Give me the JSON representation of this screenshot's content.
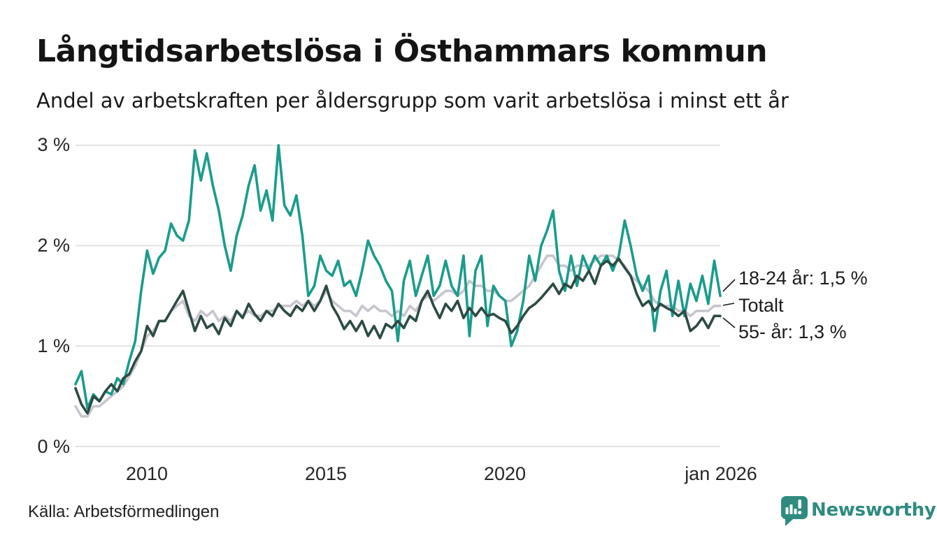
{
  "header": {
    "title": "Långtidsarbetslösa i Östhammars kommun",
    "subtitle": "Andel av arbetskraften per åldersgrupp som varit arbetslösa i minst ett år"
  },
  "footer": {
    "source": "Källa: Arbetsförmedlingen",
    "brand": "Newsworthy"
  },
  "colors": {
    "teal": "#1a9c8b",
    "dark_green": "#2c4b44",
    "gray": "#c8c5ce",
    "grid": "#e3e3e3",
    "connector": "#1a1a1a",
    "brand_teal": "#2f8b80"
  },
  "chart_data": {
    "type": "line",
    "title": "Långtidsarbetslösa i Östhammars kommun",
    "subtitle": "Andel av arbetskraften per åldersgrupp som varit arbetslösa i minst ett år",
    "x_start": 2008.0,
    "x_end": 2026.0,
    "xlim": [
      2008.0,
      2026.08
    ],
    "ylim": [
      0,
      3
    ],
    "grid": "horizontal",
    "legend_position": "right-end-labels",
    "yticks": [
      {
        "value": 3,
        "label": "3 %"
      },
      {
        "value": 2,
        "label": "2 %"
      },
      {
        "value": 1,
        "label": "1 %"
      },
      {
        "value": 0,
        "label": "0 %"
      }
    ],
    "xticks": [
      {
        "value": 2010,
        "label": "2010"
      },
      {
        "value": 2015,
        "label": "2015"
      },
      {
        "value": 2020,
        "label": "2020"
      },
      {
        "value": 2026.0,
        "label": "jan 2026"
      }
    ],
    "draw_order": [
      1,
      0,
      2
    ],
    "series": [
      {
        "name": "18-24 år",
        "end_label": "18-24 år: 1,5 %",
        "color": "#1a9c8b",
        "values": [
          0.62,
          0.75,
          0.38,
          0.52,
          0.45,
          0.55,
          0.52,
          0.68,
          0.62,
          0.85,
          1.05,
          1.55,
          1.95,
          1.72,
          1.88,
          1.95,
          2.22,
          2.1,
          2.05,
          2.25,
          2.95,
          2.65,
          2.92,
          2.6,
          2.35,
          2.0,
          1.75,
          2.1,
          2.3,
          2.6,
          2.8,
          2.35,
          2.55,
          2.25,
          3.0,
          2.4,
          2.3,
          2.5,
          2.1,
          1.5,
          1.6,
          1.9,
          1.75,
          1.7,
          1.85,
          1.6,
          1.65,
          1.5,
          1.75,
          2.05,
          1.9,
          1.8,
          1.65,
          1.55,
          1.05,
          1.65,
          1.85,
          1.5,
          1.7,
          1.9,
          1.5,
          1.6,
          1.85,
          1.6,
          1.5,
          1.9,
          1.1,
          1.75,
          1.9,
          1.2,
          1.6,
          1.5,
          1.45,
          1.0,
          1.15,
          1.45,
          1.9,
          1.65,
          2.0,
          2.15,
          2.35,
          1.75,
          1.55,
          1.9,
          1.6,
          1.9,
          1.75,
          1.9,
          1.8,
          1.9,
          1.75,
          1.9,
          2.25,
          2.0,
          1.7,
          1.55,
          1.7,
          1.15,
          1.55,
          1.75,
          1.3,
          1.65,
          1.3,
          1.62,
          1.45,
          1.7,
          1.42,
          1.85,
          1.5
        ]
      },
      {
        "name": "Totalt",
        "end_label": "Totalt",
        "color": "#c8c5ce",
        "values": [
          0.4,
          0.3,
          0.3,
          0.4,
          0.4,
          0.45,
          0.5,
          0.55,
          0.6,
          0.7,
          0.8,
          0.95,
          1.1,
          1.15,
          1.25,
          1.25,
          1.35,
          1.4,
          1.45,
          1.3,
          1.25,
          1.35,
          1.3,
          1.35,
          1.25,
          1.3,
          1.25,
          1.35,
          1.3,
          1.35,
          1.3,
          1.3,
          1.35,
          1.35,
          1.4,
          1.4,
          1.4,
          1.45,
          1.4,
          1.45,
          1.4,
          1.45,
          1.55,
          1.45,
          1.4,
          1.35,
          1.35,
          1.3,
          1.4,
          1.35,
          1.4,
          1.35,
          1.35,
          1.3,
          1.35,
          1.3,
          1.4,
          1.35,
          1.45,
          1.5,
          1.45,
          1.5,
          1.55,
          1.55,
          1.5,
          1.55,
          1.65,
          1.6,
          1.6,
          1.55,
          1.55,
          1.5,
          1.45,
          1.45,
          1.5,
          1.55,
          1.6,
          1.7,
          1.8,
          1.9,
          1.9,
          1.8,
          1.8,
          1.75,
          1.8,
          1.8,
          1.8,
          1.85,
          1.9,
          1.9,
          1.9,
          1.85,
          1.8,
          1.7,
          1.65,
          1.6,
          1.55,
          1.45,
          1.4,
          1.4,
          1.4,
          1.35,
          1.35,
          1.3,
          1.35,
          1.35,
          1.35,
          1.4,
          1.4
        ]
      },
      {
        "name": "55- år",
        "end_label": "55- år: 1,3 %",
        "color": "#2c4b44",
        "values": [
          0.58,
          0.42,
          0.33,
          0.5,
          0.45,
          0.55,
          0.62,
          0.55,
          0.68,
          0.72,
          0.85,
          0.95,
          1.2,
          1.1,
          1.25,
          1.25,
          1.35,
          1.45,
          1.55,
          1.35,
          1.15,
          1.3,
          1.18,
          1.22,
          1.12,
          1.28,
          1.2,
          1.35,
          1.28,
          1.42,
          1.32,
          1.25,
          1.35,
          1.3,
          1.42,
          1.35,
          1.3,
          1.4,
          1.35,
          1.45,
          1.35,
          1.45,
          1.6,
          1.4,
          1.3,
          1.17,
          1.25,
          1.15,
          1.25,
          1.1,
          1.2,
          1.08,
          1.22,
          1.18,
          1.25,
          1.18,
          1.3,
          1.25,
          1.45,
          1.55,
          1.4,
          1.28,
          1.42,
          1.35,
          1.45,
          1.28,
          1.38,
          1.3,
          1.38,
          1.3,
          1.32,
          1.28,
          1.25,
          1.13,
          1.2,
          1.3,
          1.38,
          1.42,
          1.48,
          1.55,
          1.62,
          1.52,
          1.62,
          1.58,
          1.7,
          1.65,
          1.75,
          1.62,
          1.8,
          1.85,
          1.8,
          1.87,
          1.78,
          1.7,
          1.52,
          1.4,
          1.45,
          1.35,
          1.42,
          1.38,
          1.35,
          1.3,
          1.35,
          1.15,
          1.2,
          1.28,
          1.18,
          1.3,
          1.3
        ]
      }
    ]
  }
}
